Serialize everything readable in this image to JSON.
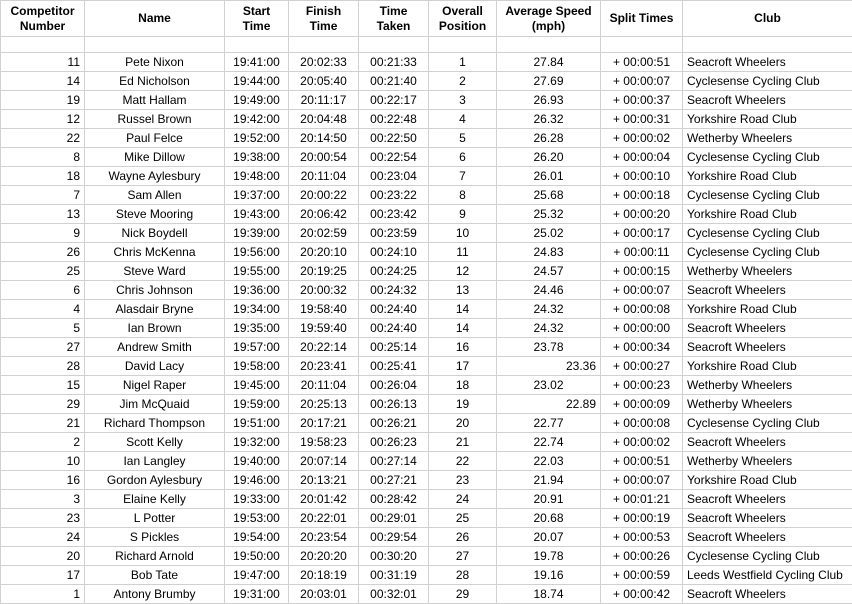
{
  "table": {
    "columns": [
      {
        "key": "competitor",
        "label": "Competitor Number",
        "align": "right",
        "class": "col-competitor"
      },
      {
        "key": "name",
        "label": "Name",
        "align": "center",
        "class": "col-name"
      },
      {
        "key": "start",
        "label": "Start Time",
        "align": "center",
        "class": "col-start"
      },
      {
        "key": "finish",
        "label": "Finish Time",
        "align": "center",
        "class": "col-finish"
      },
      {
        "key": "taken",
        "label": "Time Taken",
        "align": "center",
        "class": "col-taken"
      },
      {
        "key": "position",
        "label": "Overall Position",
        "align": "center",
        "class": "col-position"
      },
      {
        "key": "speed",
        "label": "Average Speed (mph)",
        "align": "right",
        "class": "col-speed"
      },
      {
        "key": "split",
        "label": "Split Times",
        "align": "center",
        "class": "col-split"
      },
      {
        "key": "club",
        "label": "Club",
        "align": "left",
        "class": "col-club"
      }
    ],
    "rows": [
      {
        "competitor": "11",
        "name": "Pete Nixon",
        "start": "19:41:00",
        "finish": "20:02:33",
        "taken": "00:21:33",
        "position": "1",
        "speed": "27.84",
        "split": "+ 00:00:51",
        "club": "Seacroft Wheelers"
      },
      {
        "competitor": "14",
        "name": "Ed Nicholson",
        "start": "19:44:00",
        "finish": "20:05:40",
        "taken": "00:21:40",
        "position": "2",
        "speed": "27.69",
        "split": "+ 00:00:07",
        "club": "Cyclesense Cycling Club"
      },
      {
        "competitor": "19",
        "name": "Matt Hallam",
        "start": "19:49:00",
        "finish": "20:11:17",
        "taken": "00:22:17",
        "position": "3",
        "speed": "26.93",
        "split": "+ 00:00:37",
        "club": "Seacroft Wheelers"
      },
      {
        "competitor": "12",
        "name": "Russel Brown",
        "start": "19:42:00",
        "finish": "20:04:48",
        "taken": "00:22:48",
        "position": "4",
        "speed": "26.32",
        "split": "+ 00:00:31",
        "club": "Yorkshire Road Club"
      },
      {
        "competitor": "22",
        "name": "Paul Felce",
        "start": "19:52:00",
        "finish": "20:14:50",
        "taken": "00:22:50",
        "position": "5",
        "speed": "26.28",
        "split": "+ 00:00:02",
        "club": "Wetherby Wheelers"
      },
      {
        "competitor": "8",
        "name": "Mike Dillow",
        "start": "19:38:00",
        "finish": "20:00:54",
        "taken": "00:22:54",
        "position": "6",
        "speed": "26.20",
        "split": "+ 00:00:04",
        "club": "Cyclesense Cycling Club"
      },
      {
        "competitor": "18",
        "name": "Wayne Aylesbury",
        "start": "19:48:00",
        "finish": "20:11:04",
        "taken": "00:23:04",
        "position": "7",
        "speed": "26.01",
        "split": "+ 00:00:10",
        "club": "Yorkshire Road Club"
      },
      {
        "competitor": "7",
        "name": "Sam Allen",
        "start": "19:37:00",
        "finish": "20:00:22",
        "taken": "00:23:22",
        "position": "8",
        "speed": "25.68",
        "split": "+ 00:00:18",
        "club": "Cyclesense Cycling Club"
      },
      {
        "competitor": "13",
        "name": "Steve Mooring",
        "start": "19:43:00",
        "finish": "20:06:42",
        "taken": "00:23:42",
        "position": "9",
        "speed": "25.32",
        "split": "+ 00:00:20",
        "club": "Yorkshire Road Club"
      },
      {
        "competitor": "9",
        "name": "Nick Boydell",
        "start": "19:39:00",
        "finish": "20:02:59",
        "taken": "00:23:59",
        "position": "10",
        "speed": "25.02",
        "split": "+ 00:00:17",
        "club": "Cyclesense Cycling Club"
      },
      {
        "competitor": "26",
        "name": "Chris McKenna",
        "start": "19:56:00",
        "finish": "20:20:10",
        "taken": "00:24:10",
        "position": "11",
        "speed": "24.83",
        "split": "+ 00:00:11",
        "club": "Cyclesense Cycling Club"
      },
      {
        "competitor": "25",
        "name": "Steve Ward",
        "start": "19:55:00",
        "finish": "20:19:25",
        "taken": "00:24:25",
        "position": "12",
        "speed": "24.57",
        "split": "+ 00:00:15",
        "club": "Wetherby Wheelers"
      },
      {
        "competitor": "6",
        "name": "Chris Johnson",
        "start": "19:36:00",
        "finish": "20:00:32",
        "taken": "00:24:32",
        "position": "13",
        "speed": "24.46",
        "split": "+ 00:00:07",
        "club": "Seacroft Wheelers"
      },
      {
        "competitor": "4",
        "name": "Alasdair Bryne",
        "start": "19:34:00",
        "finish": "19:58:40",
        "taken": "00:24:40",
        "position": "14",
        "speed": "24.32",
        "split": "+ 00:00:08",
        "club": "Yorkshire Road Club"
      },
      {
        "competitor": "5",
        "name": "Ian Brown",
        "start": "19:35:00",
        "finish": "19:59:40",
        "taken": "00:24:40",
        "position": "14",
        "speed": "24.32",
        "split": "+ 00:00:00",
        "club": "Seacroft Wheelers"
      },
      {
        "competitor": "27",
        "name": "Andrew Smith",
        "start": "19:57:00",
        "finish": "20:22:14",
        "taken": "00:25:14",
        "position": "16",
        "speed": "23.78",
        "split": "+ 00:00:34",
        "club": "Seacroft Wheelers"
      },
      {
        "competitor": "28",
        "name": "David Lacy",
        "start": "19:58:00",
        "finish": "20:23:41",
        "taken": "00:25:41",
        "position": "17",
        "speed": "23.36",
        "speed_align": "right",
        "split": "+ 00:00:27",
        "club": "Yorkshire Road Club"
      },
      {
        "competitor": "15",
        "name": "Nigel Raper",
        "start": "19:45:00",
        "finish": "20:11:04",
        "taken": "00:26:04",
        "position": "18",
        "speed": "23.02",
        "split": "+ 00:00:23",
        "club": "Wetherby Wheelers"
      },
      {
        "competitor": "29",
        "name": "Jim McQuaid",
        "start": "19:59:00",
        "finish": "20:25:13",
        "taken": "00:26:13",
        "position": "19",
        "speed": "22.89",
        "speed_align": "right",
        "split": "+ 00:00:09",
        "club": "Wetherby Wheelers"
      },
      {
        "competitor": "21",
        "name": "Richard Thompson",
        "start": "19:51:00",
        "finish": "20:17:21",
        "taken": "00:26:21",
        "position": "20",
        "speed": "22.77",
        "split": "+ 00:00:08",
        "club": "Cyclesense Cycling Club"
      },
      {
        "competitor": "2",
        "name": "Scott Kelly",
        "start": "19:32:00",
        "finish": "19:58:23",
        "taken": "00:26:23",
        "position": "21",
        "speed": "22.74",
        "split": "+ 00:00:02",
        "club": "Seacroft Wheelers"
      },
      {
        "competitor": "10",
        "name": "Ian Langley",
        "start": "19:40:00",
        "finish": "20:07:14",
        "taken": "00:27:14",
        "position": "22",
        "speed": "22.03",
        "split": "+ 00:00:51",
        "club": "Wetherby Wheelers"
      },
      {
        "competitor": "16",
        "name": "Gordon Aylesbury",
        "start": "19:46:00",
        "finish": "20:13:21",
        "taken": "00:27:21",
        "position": "23",
        "speed": "21.94",
        "split": "+ 00:00:07",
        "club": "Yorkshire Road Club"
      },
      {
        "competitor": "3",
        "name": "Elaine Kelly",
        "start": "19:33:00",
        "finish": "20:01:42",
        "taken": "00:28:42",
        "position": "24",
        "speed": "20.91",
        "split": "+ 00:01:21",
        "club": "Seacroft Wheelers"
      },
      {
        "competitor": "23",
        "name": "L Potter",
        "start": "19:53:00",
        "finish": "20:22:01",
        "taken": "00:29:01",
        "position": "25",
        "speed": "20.68",
        "split": "+ 00:00:19",
        "club": "Seacroft Wheelers"
      },
      {
        "competitor": "24",
        "name": "S Pickles",
        "start": "19:54:00",
        "finish": "20:23:54",
        "taken": "00:29:54",
        "position": "26",
        "speed": "20.07",
        "split": "+ 00:00:53",
        "club": "Seacroft Wheelers"
      },
      {
        "competitor": "20",
        "name": "Richard Arnold",
        "start": "19:50:00",
        "finish": "20:20:20",
        "taken": "00:30:20",
        "position": "27",
        "speed": "19.78",
        "split": "+ 00:00:26",
        "club": "Cyclesense Cycling Club"
      },
      {
        "competitor": "17",
        "name": "Bob Tate",
        "start": "19:47:00",
        "finish": "20:18:19",
        "taken": "00:31:19",
        "position": "28",
        "speed": "19.16",
        "split": "+ 00:00:59",
        "club": "Leeds Westfield Cycling Club"
      },
      {
        "competitor": "1",
        "name": "Antony Brumby",
        "start": "19:31:00",
        "finish": "20:03:01",
        "taken": "00:32:01",
        "position": "29",
        "speed": "18.74",
        "split": "+ 00:00:42",
        "club": "Seacroft Wheelers"
      }
    ],
    "default_speed_align": "center",
    "border_color": "#d0d0d0",
    "background_color": "#ffffff",
    "text_color": "#000000",
    "font_size": 12
  }
}
